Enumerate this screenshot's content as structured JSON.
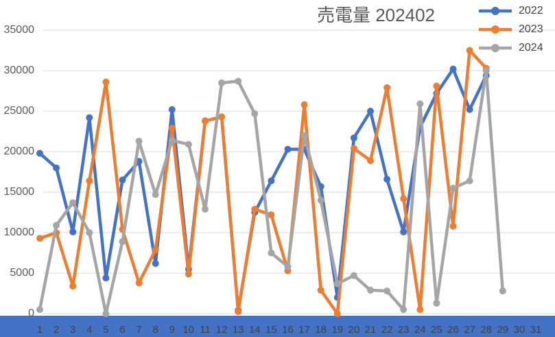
{
  "chart_data": {
    "type": "line",
    "title": "売電量 202402",
    "categories": [
      "1",
      "2",
      "3",
      "4",
      "5",
      "6",
      "7",
      "8",
      "9",
      "10",
      "11",
      "12",
      "13",
      "14",
      "15",
      "16",
      "17",
      "18",
      "19",
      "20",
      "21",
      "22",
      "23",
      "24",
      "25",
      "26",
      "27",
      "28",
      "29",
      "30",
      "31"
    ],
    "series": [
      {
        "name": "2022",
        "color": "#4472c4",
        "values": [
          19800,
          18000,
          10100,
          24200,
          4400,
          16500,
          18800,
          6200,
          25200,
          5500,
          23800,
          24300,
          400,
          12500,
          16400,
          20300,
          20300,
          15700,
          2000,
          21700,
          25000,
          16600,
          10100,
          23000,
          27200,
          30200,
          25200,
          29400,
          null,
          null,
          null
        ]
      },
      {
        "name": "2023",
        "color": "#ed7d31",
        "values": [
          9300,
          10000,
          3400,
          16400,
          28600,
          10400,
          3800,
          7900,
          22900,
          4900,
          23800,
          24300,
          250,
          12900,
          12200,
          5300,
          25800,
          2900,
          0,
          20400,
          18900,
          27900,
          14200,
          500,
          28100,
          10800,
          32500,
          30300,
          null,
          null,
          null
        ]
      },
      {
        "name": "2024",
        "color": "#a5a5a5",
        "values": [
          500,
          10900,
          13700,
          10000,
          0,
          8900,
          21300,
          14700,
          21400,
          20900,
          12900,
          28500,
          28700,
          24700,
          7500,
          5800,
          22000,
          14000,
          3700,
          4700,
          2900,
          2800,
          500,
          25900,
          1300,
          15500,
          16400,
          30000,
          2800,
          null,
          null
        ]
      }
    ],
    "ylim": [
      0,
      35000
    ],
    "yticks": [
      0,
      5000,
      10000,
      15000,
      20000,
      25000,
      30000,
      35000
    ],
    "grid": true,
    "legend": "top-right"
  }
}
